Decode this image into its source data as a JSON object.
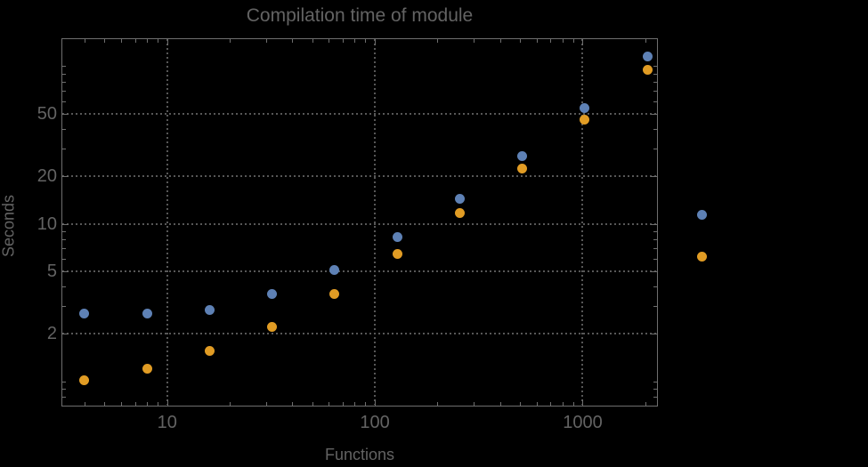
{
  "title": "Compilation time of module",
  "colors": {
    "background": "#000000",
    "frame": "#6e6e6e",
    "grid": "#575757",
    "text": "#636363",
    "series1": "#5e81b5",
    "series2": "#e19c24"
  },
  "axes": {
    "x": {
      "label": "Functions",
      "scale": "log",
      "major_ticks": [
        10,
        100,
        1000
      ],
      "tick_labels": [
        "10",
        "100",
        "1000"
      ],
      "minor_ticks": [
        4,
        5,
        6,
        7,
        8,
        9,
        20,
        30,
        40,
        50,
        60,
        70,
        80,
        90,
        200,
        300,
        400,
        500,
        600,
        700,
        800,
        900,
        2000
      ],
      "gridlines": [
        10,
        100,
        1000
      ]
    },
    "y": {
      "label": "Seconds",
      "scale": "log",
      "major_ticks": [
        50,
        20,
        10,
        5,
        2
      ],
      "tick_labels": [
        "50",
        "20",
        "10",
        "5",
        "2"
      ],
      "minor_ticks": [
        0.8,
        0.9,
        1,
        3,
        4,
        6,
        7,
        8,
        9,
        30,
        40,
        60,
        70,
        80,
        90,
        100
      ],
      "gridlines": [
        50,
        20,
        10,
        5,
        2
      ]
    }
  },
  "legend": {
    "items": [
      {
        "label": "",
        "color": "#5e81b5"
      },
      {
        "label": "",
        "color": "#e19c24"
      }
    ]
  },
  "chart_data": {
    "type": "scatter",
    "title": "Compilation time of module",
    "xlabel": "Functions",
    "ylabel": "Seconds",
    "xscale": "log",
    "yscale": "log",
    "xlim": [
      3.1,
      2280
    ],
    "ylim": [
      0.7,
      150.5
    ],
    "grid": true,
    "legend_position": "right-outside",
    "x": [
      4,
      8,
      16,
      32,
      64,
      128,
      256,
      512,
      1024,
      2048
    ],
    "series": [
      {
        "name": "series-1",
        "color": "#5e81b5",
        "values": [
          2.7,
          2.7,
          2.85,
          3.6,
          5.1,
          8.2,
          14.4,
          26.7,
          54,
          115
        ]
      },
      {
        "name": "series-2",
        "color": "#e19c24",
        "values": [
          1.02,
          1.2,
          1.55,
          2.2,
          3.6,
          6.4,
          11.7,
          22.3,
          46,
          95
        ]
      }
    ]
  }
}
